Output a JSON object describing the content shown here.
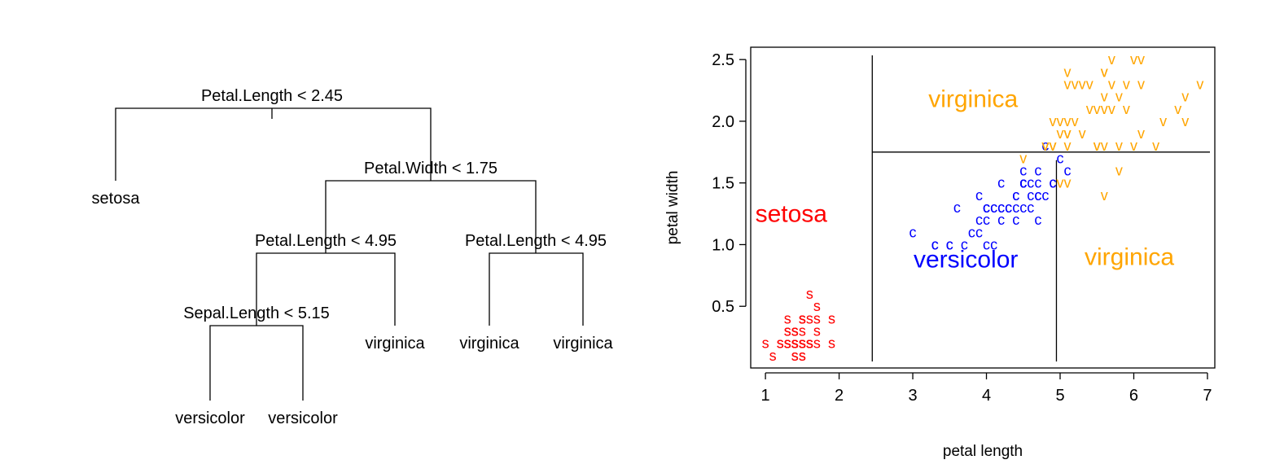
{
  "chart_data": [
    {
      "type": "tree",
      "nodes": [
        {
          "id": "root",
          "split": "Petal.Length < 2.45"
        },
        {
          "id": "n1",
          "leaf": "setosa"
        },
        {
          "id": "n2",
          "split": "Petal.Width < 1.75"
        },
        {
          "id": "n3",
          "split": "Petal.Length < 4.95"
        },
        {
          "id": "n4",
          "split": "Petal.Length < 4.95"
        },
        {
          "id": "n5",
          "split": "Sepal.Length < 5.15"
        },
        {
          "id": "n6",
          "leaf": "virginica"
        },
        {
          "id": "n7",
          "leaf": "virginica"
        },
        {
          "id": "n8",
          "leaf": "virginica"
        },
        {
          "id": "n9",
          "leaf": "versicolor"
        },
        {
          "id": "n10",
          "leaf": "versicolor"
        }
      ]
    },
    {
      "type": "scatter",
      "xlabel": "petal length",
      "ylabel": "petal width",
      "xlim": [
        0.8,
        7.1
      ],
      "ylim": [
        0.0,
        2.6
      ],
      "xticks": [
        "1",
        "2",
        "3",
        "4",
        "5",
        "6",
        "7"
      ],
      "yticks": [
        "0.5",
        "1.0",
        "1.5",
        "2.0",
        "2.5"
      ],
      "partition_lines": [
        {
          "orientation": "vertical",
          "x": 2.45,
          "y0": 0.0,
          "y1": 2.6
        },
        {
          "orientation": "horizontal",
          "y": 1.75,
          "x0": 2.45,
          "x1": 7.1
        },
        {
          "orientation": "vertical",
          "x": 4.95,
          "y0": 0.0,
          "y1": 1.75
        }
      ],
      "region_labels": [
        {
          "text": "setosa",
          "x": 1.35,
          "y": 1.25,
          "color": "#ff0000"
        },
        {
          "text": "versicolor",
          "x": 3.72,
          "y": 0.88,
          "color": "#0000ff"
        },
        {
          "text": "virginica",
          "x": 5.94,
          "y": 0.9,
          "color": "#ffa500"
        },
        {
          "text": "virginica",
          "x": 3.82,
          "y": 2.18,
          "color": "#ffa500"
        }
      ],
      "series": [
        {
          "marker": "s",
          "color": "#ff0000",
          "points": [
            [
              1.4,
              0.2
            ],
            [
              1.4,
              0.2
            ],
            [
              1.3,
              0.2
            ],
            [
              1.5,
              0.2
            ],
            [
              1.4,
              0.2
            ],
            [
              1.7,
              0.4
            ],
            [
              1.4,
              0.3
            ],
            [
              1.5,
              0.2
            ],
            [
              1.4,
              0.2
            ],
            [
              1.5,
              0.1
            ],
            [
              1.5,
              0.2
            ],
            [
              1.6,
              0.2
            ],
            [
              1.4,
              0.1
            ],
            [
              1.1,
              0.1
            ],
            [
              1.2,
              0.2
            ],
            [
              1.5,
              0.4
            ],
            [
              1.3,
              0.4
            ],
            [
              1.4,
              0.3
            ],
            [
              1.7,
              0.3
            ],
            [
              1.5,
              0.3
            ],
            [
              1.7,
              0.2
            ],
            [
              1.5,
              0.4
            ],
            [
              1.0,
              0.2
            ],
            [
              1.7,
              0.5
            ],
            [
              1.9,
              0.2
            ],
            [
              1.6,
              0.2
            ],
            [
              1.6,
              0.4
            ],
            [
              1.5,
              0.2
            ],
            [
              1.4,
              0.2
            ],
            [
              1.6,
              0.2
            ],
            [
              1.6,
              0.2
            ],
            [
              1.5,
              0.4
            ],
            [
              1.5,
              0.1
            ],
            [
              1.4,
              0.2
            ],
            [
              1.5,
              0.2
            ],
            [
              1.2,
              0.2
            ],
            [
              1.3,
              0.2
            ],
            [
              1.4,
              0.1
            ],
            [
              1.3,
              0.2
            ],
            [
              1.5,
              0.2
            ],
            [
              1.3,
              0.3
            ],
            [
              1.3,
              0.3
            ],
            [
              1.3,
              0.2
            ],
            [
              1.6,
              0.6
            ],
            [
              1.9,
              0.4
            ],
            [
              1.4,
              0.3
            ],
            [
              1.6,
              0.2
            ],
            [
              1.4,
              0.2
            ],
            [
              1.5,
              0.2
            ],
            [
              1.4,
              0.2
            ]
          ]
        },
        {
          "marker": "c",
          "color": "#0000ff",
          "points": [
            [
              4.7,
              1.4
            ],
            [
              4.5,
              1.5
            ],
            [
              4.9,
              1.5
            ],
            [
              4.0,
              1.3
            ],
            [
              4.6,
              1.5
            ],
            [
              4.5,
              1.3
            ],
            [
              4.7,
              1.6
            ],
            [
              3.3,
              1.0
            ],
            [
              4.6,
              1.3
            ],
            [
              3.9,
              1.4
            ],
            [
              3.5,
              1.0
            ],
            [
              4.2,
              1.5
            ],
            [
              4.0,
              1.0
            ],
            [
              4.7,
              1.4
            ],
            [
              3.6,
              1.3
            ],
            [
              4.4,
              1.4
            ],
            [
              4.5,
              1.5
            ],
            [
              4.1,
              1.0
            ],
            [
              4.5,
              1.5
            ],
            [
              3.9,
              1.1
            ],
            [
              4.8,
              1.8
            ],
            [
              4.0,
              1.3
            ],
            [
              4.9,
              1.5
            ],
            [
              4.7,
              1.2
            ],
            [
              4.3,
              1.3
            ],
            [
              4.4,
              1.4
            ],
            [
              4.8,
              1.4
            ],
            [
              5.0,
              1.7
            ],
            [
              4.5,
              1.5
            ],
            [
              3.5,
              1.0
            ],
            [
              3.8,
              1.1
            ],
            [
              3.7,
              1.0
            ],
            [
              3.9,
              1.2
            ],
            [
              5.1,
              1.6
            ],
            [
              4.5,
              1.5
            ],
            [
              4.5,
              1.6
            ],
            [
              4.7,
              1.5
            ],
            [
              4.4,
              1.3
            ],
            [
              4.1,
              1.3
            ],
            [
              4.0,
              1.3
            ],
            [
              4.4,
              1.2
            ],
            [
              4.6,
              1.4
            ],
            [
              4.0,
              1.2
            ],
            [
              3.3,
              1.0
            ],
            [
              4.2,
              1.3
            ],
            [
              4.2,
              1.2
            ],
            [
              4.2,
              1.3
            ],
            [
              4.3,
              1.3
            ],
            [
              3.0,
              1.1
            ],
            [
              4.1,
              1.3
            ]
          ]
        },
        {
          "marker": "v",
          "color": "#ffa500",
          "points": [
            [
              6.0,
              2.5
            ],
            [
              5.1,
              1.9
            ],
            [
              5.9,
              2.1
            ],
            [
              5.6,
              1.8
            ],
            [
              5.8,
              2.2
            ],
            [
              6.6,
              2.1
            ],
            [
              4.5,
              1.7
            ],
            [
              6.3,
              1.8
            ],
            [
              5.8,
              1.8
            ],
            [
              6.1,
              2.5
            ],
            [
              5.1,
              2.0
            ],
            [
              5.3,
              1.9
            ],
            [
              5.5,
              2.1
            ],
            [
              5.0,
              2.0
            ],
            [
              5.1,
              2.4
            ],
            [
              5.3,
              2.3
            ],
            [
              5.5,
              1.8
            ],
            [
              6.7,
              2.2
            ],
            [
              6.9,
              2.3
            ],
            [
              5.0,
              1.5
            ],
            [
              5.7,
              2.3
            ],
            [
              4.9,
              2.0
            ],
            [
              6.7,
              2.0
            ],
            [
              4.9,
              1.8
            ],
            [
              5.7,
              2.1
            ],
            [
              6.0,
              1.8
            ],
            [
              4.8,
              1.8
            ],
            [
              4.9,
              1.8
            ],
            [
              5.6,
              2.1
            ],
            [
              5.8,
              1.6
            ],
            [
              6.1,
              1.9
            ],
            [
              6.4,
              2.0
            ],
            [
              5.6,
              2.2
            ],
            [
              5.1,
              1.5
            ],
            [
              5.6,
              1.4
            ],
            [
              6.1,
              2.3
            ],
            [
              5.6,
              2.4
            ],
            [
              5.5,
              1.8
            ],
            [
              4.8,
              1.8
            ],
            [
              5.4,
              2.1
            ],
            [
              5.6,
              2.4
            ],
            [
              5.1,
              2.3
            ],
            [
              5.1,
              1.9
            ],
            [
              5.9,
              2.3
            ],
            [
              5.7,
              2.5
            ],
            [
              5.2,
              2.3
            ],
            [
              5.0,
              1.9
            ],
            [
              5.2,
              2.0
            ],
            [
              5.4,
              2.3
            ],
            [
              5.1,
              1.8
            ]
          ]
        }
      ]
    }
  ]
}
